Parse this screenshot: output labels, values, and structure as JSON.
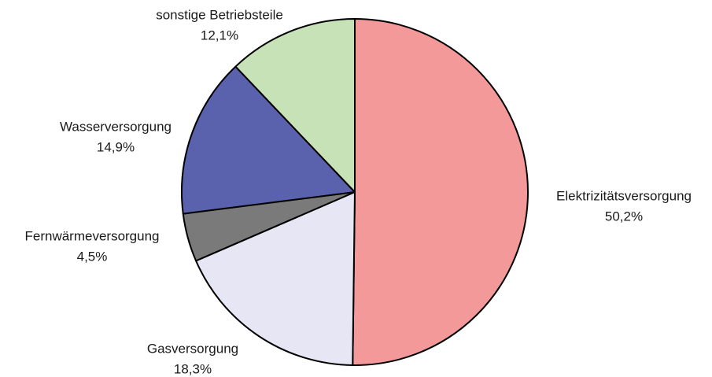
{
  "chart_data": {
    "type": "pie",
    "categories": [
      "Elektrizitätsversorgung",
      "Gasversorgung",
      "Fernwärmeversorgung",
      "Wasserversorgung",
      "sonstige Betriebsteile"
    ],
    "values": [
      50.2,
      18.3,
      4.5,
      14.9,
      12.1
    ],
    "value_labels": [
      "50,2%",
      "18,3%",
      "4,5%",
      "14,9%",
      "12,1%"
    ],
    "colors": [
      "#f4999a",
      "#e6e6f4",
      "#7a7a7a",
      "#5a62ae",
      "#c6e2b6"
    ]
  }
}
